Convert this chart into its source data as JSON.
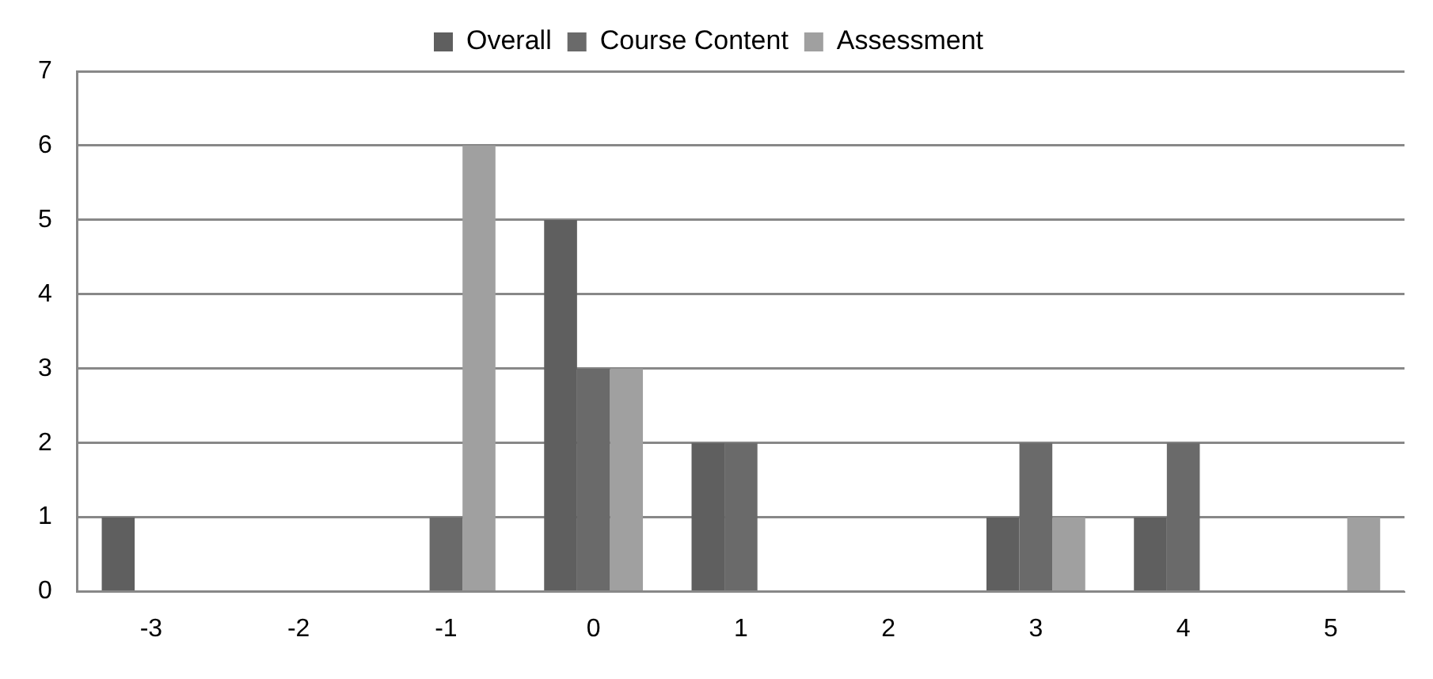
{
  "chart_data": {
    "type": "bar",
    "categories": [
      "-3",
      "-2",
      "-1",
      "0",
      "1",
      "2",
      "3",
      "4",
      "5"
    ],
    "series": [
      {
        "name": "Overall",
        "color": "#5f5f5f",
        "values": [
          1,
          0,
          0,
          5,
          2,
          0,
          1,
          1,
          0
        ]
      },
      {
        "name": "Course Content",
        "color": "#6a6a6a",
        "values": [
          0,
          0,
          1,
          3,
          2,
          0,
          2,
          2,
          0
        ]
      },
      {
        "name": "Assessment",
        "color": "#a0a0a0",
        "values": [
          0,
          0,
          6,
          3,
          0,
          0,
          1,
          0,
          1
        ]
      }
    ],
    "ylim": [
      0,
      7
    ],
    "yticks": [
      0,
      1,
      2,
      3,
      4,
      5,
      6,
      7
    ],
    "grid": "y",
    "legend": "top"
  }
}
